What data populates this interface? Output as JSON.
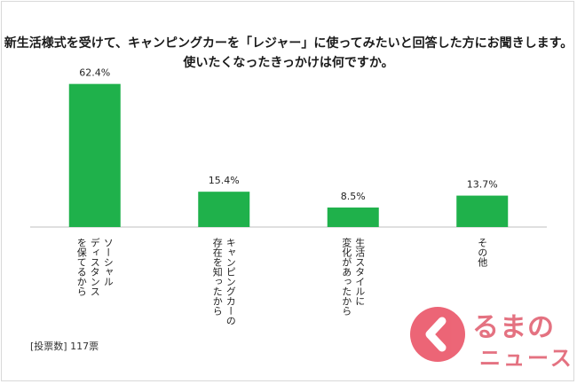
{
  "title_line1": "新生活様式を受けて、キャンピングカーを「レジャー」に使ってみたいと回答した方にお聞きします。",
  "title_line2": "使いたくなったきっかけは何ですか。",
  "footnote": "[投票数] 117票",
  "logo": {
    "line1": "るまの",
    "line2": "ニュース"
  },
  "colors": {
    "bar": "#1fb14b",
    "axis": "#bfbfbf",
    "logo": "#e05a6c"
  },
  "chart_data": {
    "type": "bar",
    "title": "",
    "xlabel": "",
    "ylabel": "",
    "ylim": [
      0,
      70
    ],
    "grid": false,
    "value_suffix": "%",
    "categories": [
      [
        "ソーシャル",
        "ディスタンス",
        "を保てるから"
      ],
      [
        "キャンピングカーの",
        "存在を知ったから"
      ],
      [
        "生活スタイルに",
        "変化があったから"
      ],
      [
        "その他"
      ]
    ],
    "values": [
      62.4,
      15.4,
      8.5,
      13.7
    ]
  }
}
